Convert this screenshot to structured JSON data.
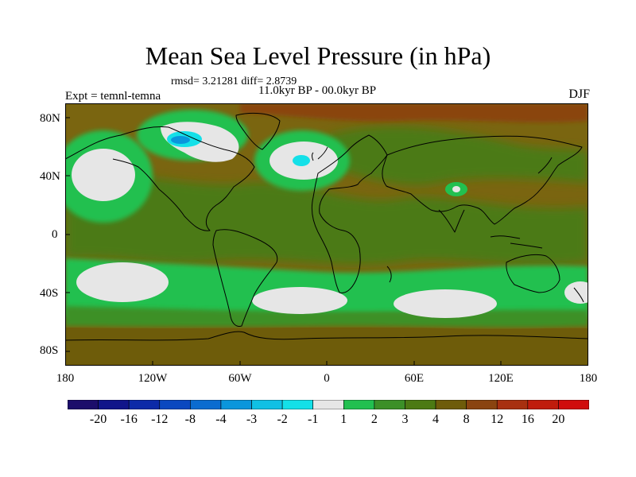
{
  "title": "Mean Sea Level Pressure (in hPa)",
  "stats": "rmsd= 3.21281 diff= 2.8739",
  "period": "11.0kyr BP - 00.0kyr BP",
  "experiment": "Expt = temnl-temna",
  "season": "DJF",
  "lat_ticks": [
    "80N",
    "40N",
    "0",
    "40S",
    "80S"
  ],
  "lon_ticks": [
    "180",
    "120W",
    "60W",
    "0",
    "60E",
    "120E",
    "180"
  ],
  "colorbar": {
    "labels": [
      "-20",
      "-16",
      "-12",
      "-8",
      "-4",
      "-3",
      "-2",
      "-1",
      "1",
      "2",
      "3",
      "4",
      "8",
      "12",
      "16",
      "20"
    ],
    "colors": [
      "#1c0d6b",
      "#10158a",
      "#0c2aa8",
      "#0a48c0",
      "#0a6cd0",
      "#0a96dc",
      "#10c0e4",
      "#14e0e8",
      "#e6e6e6",
      "#22c050",
      "#3c9028",
      "#4c7a14",
      "#6e5c0a",
      "#8a4410",
      "#a83010",
      "#c01c0c",
      "#d00c0c"
    ]
  },
  "field_colors": {
    "background": "#7a6510",
    "green_light": "#22c050",
    "green_mid": "#3c9028",
    "green_dark": "#4c7a14",
    "white": "#e6e6e6",
    "cyan": "#14e0e8",
    "blue": "#0a96dc",
    "brown": "#6e5c0a",
    "rust": "#8a4410"
  }
}
